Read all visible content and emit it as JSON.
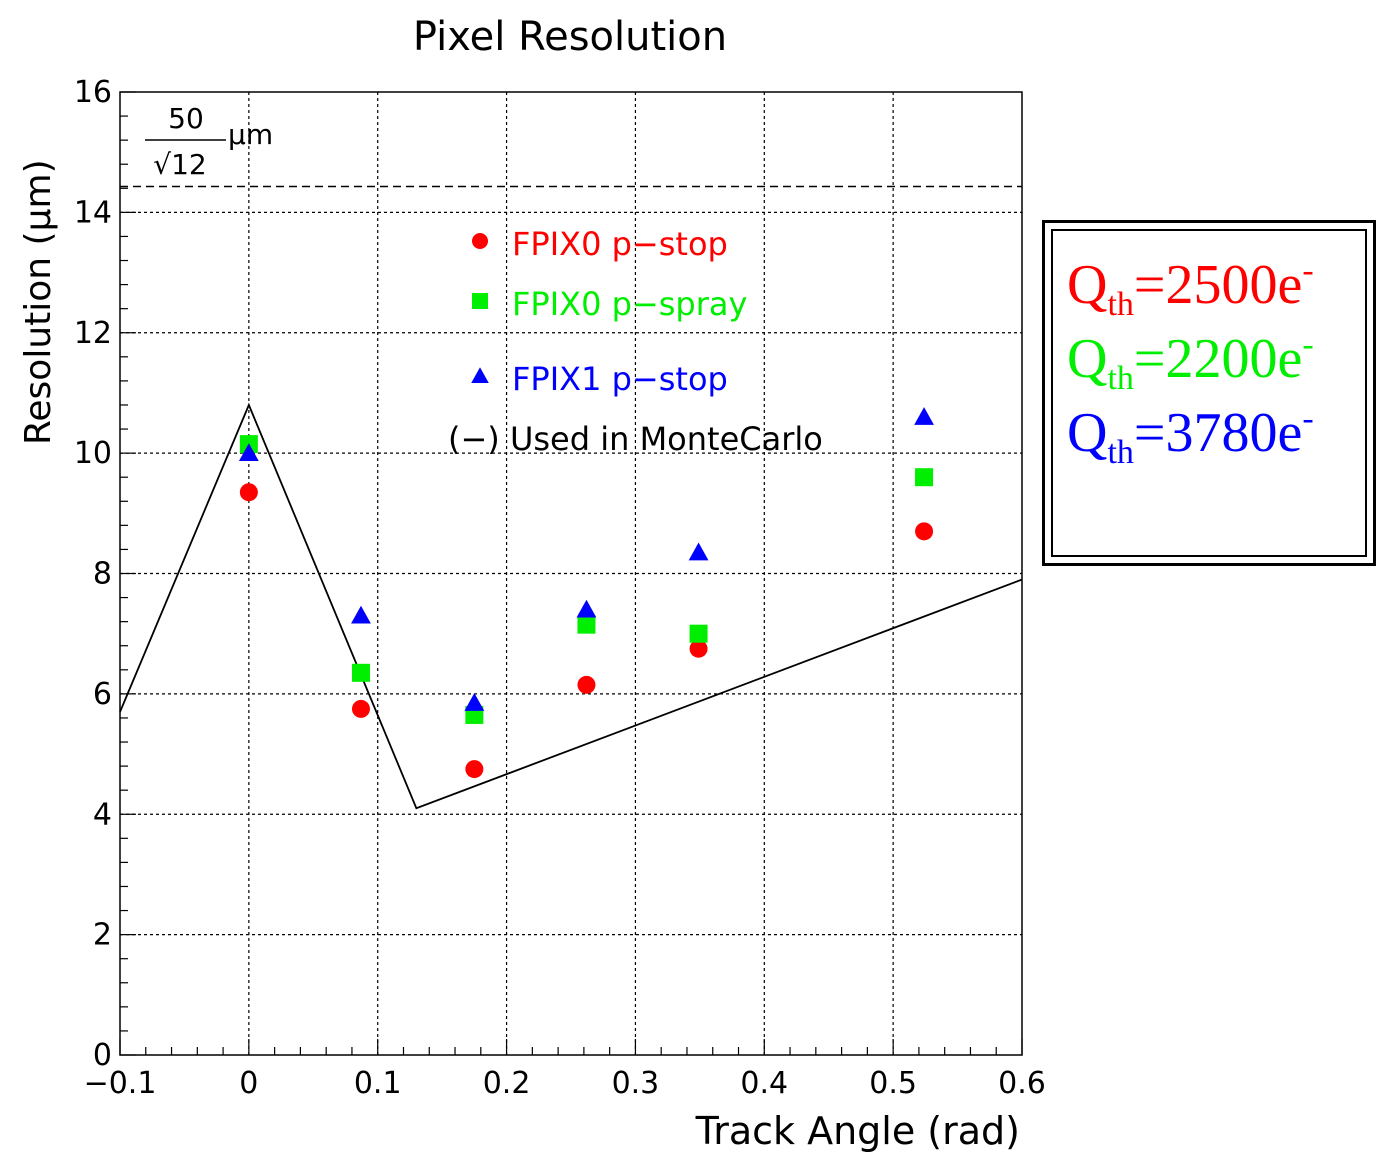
{
  "chart_data": {
    "type": "scatter",
    "title": "Pixel Resolution",
    "xlabel": "Track Angle (rad)",
    "ylabel": "Resolution (μm)",
    "xlim": [
      -0.1,
      0.6
    ],
    "ylim": [
      0,
      16
    ],
    "xticks": [
      -0.1,
      0,
      0.1,
      0.2,
      0.3,
      0.4,
      0.5,
      0.6
    ],
    "xtick_labels": [
      "−0.1",
      "0",
      "0.1",
      "0.2",
      "0.3",
      "0.4",
      "0.5",
      "0.6"
    ],
    "yticks": [
      0,
      2,
      4,
      6,
      8,
      10,
      12,
      14,
      16
    ],
    "ytick_labels": [
      "0",
      "2",
      "4",
      "6",
      "8",
      "10",
      "12",
      "14",
      "16"
    ],
    "grid": true,
    "series": [
      {
        "name": "FPIX0 p−stop",
        "marker": "circle",
        "color": "#ff0000",
        "x": [
          0,
          0.087,
          0.175,
          0.262,
          0.349,
          0.524
        ],
        "y": [
          9.35,
          5.75,
          4.75,
          6.15,
          6.75,
          8.7
        ]
      },
      {
        "name": "FPIX0 p−spray",
        "marker": "square",
        "color": "#00ee00",
        "x": [
          0,
          0.087,
          0.175,
          0.262,
          0.349,
          0.524
        ],
        "y": [
          10.15,
          6.35,
          5.65,
          7.15,
          7.0,
          9.6
        ]
      },
      {
        "name": "FPIX1 p−stop",
        "marker": "triangle",
        "color": "#0000ff",
        "x": [
          0,
          0.087,
          0.175,
          0.262,
          0.349,
          0.524
        ],
        "y": [
          10.0,
          7.3,
          5.85,
          7.4,
          8.35,
          10.6
        ]
      }
    ],
    "montecarlo_line": {
      "label": "(−) Used in MonteCarlo",
      "x": [
        -0.1,
        0,
        0.13,
        0.6
      ],
      "y": [
        5.7,
        10.8,
        4.1,
        7.9
      ]
    },
    "reference_line": {
      "y": 14.43,
      "numerator": "50",
      "denominator": "√12",
      "unit": "μm"
    },
    "legend_placement": "top-center"
  },
  "threshold_box": [
    {
      "symbol": "Q",
      "sub": "th",
      "value": "=2500e",
      "sup": "-",
      "color": "#ff0000"
    },
    {
      "symbol": "Q",
      "sub": "th",
      "value": "=2200e",
      "sup": "-",
      "color": "#00ee00"
    },
    {
      "symbol": "Q",
      "sub": "th",
      "value": "=3780e",
      "sup": "-",
      "color": "#0000ff"
    }
  ]
}
